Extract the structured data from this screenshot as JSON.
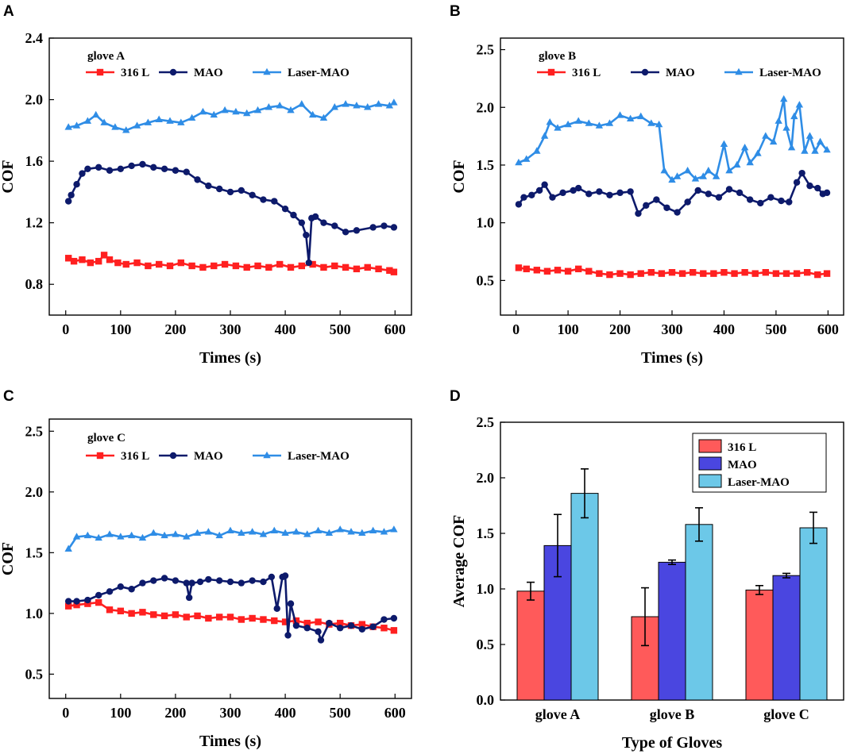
{
  "colors": {
    "s316L": "#ff2020",
    "MAO": "#0d1a6b",
    "LaserMAO": "#2f8de6",
    "bar316L": "#ff5a5a",
    "barMAO": "#4a46e0",
    "barLaserMAO": "#6cc8e8"
  },
  "chart_data": [
    {
      "panel": "A",
      "type": "line",
      "title": "glove A",
      "xlabel": "Times (s)",
      "ylabel": "COF",
      "xlim": [
        -30,
        630
      ],
      "ylim": [
        0.6,
        2.4
      ],
      "xticks": [
        0,
        100,
        200,
        300,
        400,
        500,
        600
      ],
      "yticks": [
        0.8,
        1.2,
        1.6,
        2.0,
        2.4
      ],
      "ytick_labels": [
        "0.8",
        "1.2",
        "1.6",
        "2.0",
        "2.4"
      ],
      "series": [
        {
          "name": "316 L",
          "marker": "square",
          "x": [
            5,
            15,
            30,
            45,
            60,
            70,
            80,
            95,
            110,
            130,
            150,
            170,
            190,
            210,
            230,
            250,
            270,
            290,
            310,
            330,
            350,
            370,
            390,
            410,
            430,
            450,
            470,
            490,
            510,
            530,
            550,
            570,
            590,
            598
          ],
          "y": [
            0.97,
            0.95,
            0.96,
            0.94,
            0.95,
            0.99,
            0.96,
            0.94,
            0.93,
            0.94,
            0.92,
            0.93,
            0.92,
            0.94,
            0.92,
            0.91,
            0.92,
            0.93,
            0.92,
            0.91,
            0.92,
            0.91,
            0.93,
            0.91,
            0.92,
            0.93,
            0.91,
            0.92,
            0.91,
            0.9,
            0.91,
            0.9,
            0.89,
            0.88
          ]
        },
        {
          "name": "MAO",
          "marker": "circle",
          "x": [
            5,
            10,
            20,
            30,
            40,
            60,
            80,
            100,
            120,
            140,
            160,
            180,
            200,
            220,
            240,
            260,
            280,
            300,
            320,
            340,
            360,
            380,
            400,
            415,
            430,
            438,
            443,
            448,
            455,
            470,
            490,
            510,
            530,
            560,
            580,
            598
          ],
          "y": [
            1.34,
            1.38,
            1.45,
            1.52,
            1.55,
            1.56,
            1.54,
            1.55,
            1.57,
            1.58,
            1.56,
            1.55,
            1.54,
            1.53,
            1.48,
            1.44,
            1.42,
            1.4,
            1.41,
            1.38,
            1.35,
            1.34,
            1.29,
            1.25,
            1.2,
            1.12,
            0.94,
            1.23,
            1.24,
            1.2,
            1.18,
            1.14,
            1.15,
            1.17,
            1.18,
            1.17
          ]
        },
        {
          "name": "Laser-MAO",
          "marker": "triangle",
          "x": [
            5,
            20,
            40,
            55,
            70,
            90,
            110,
            130,
            150,
            170,
            190,
            210,
            230,
            250,
            270,
            290,
            310,
            330,
            350,
            370,
            390,
            410,
            430,
            450,
            470,
            490,
            510,
            530,
            550,
            570,
            590,
            598
          ],
          "y": [
            1.82,
            1.83,
            1.86,
            1.9,
            1.85,
            1.82,
            1.8,
            1.83,
            1.85,
            1.87,
            1.86,
            1.85,
            1.88,
            1.92,
            1.9,
            1.93,
            1.92,
            1.91,
            1.93,
            1.95,
            1.96,
            1.93,
            1.97,
            1.9,
            1.88,
            1.95,
            1.97,
            1.96,
            1.95,
            1.97,
            1.96,
            1.98
          ]
        }
      ]
    },
    {
      "panel": "B",
      "type": "line",
      "title": "glove B",
      "xlabel": "Times (s)",
      "ylabel": "COF",
      "xlim": [
        -30,
        630
      ],
      "ylim": [
        0.2,
        2.6
      ],
      "xticks": [
        0,
        100,
        200,
        300,
        400,
        500,
        600
      ],
      "yticks": [
        0.5,
        1.0,
        1.5,
        2.0,
        2.5
      ],
      "ytick_labels": [
        "0.5",
        "1.0",
        "1.5",
        "2.0",
        "2.5"
      ],
      "series": [
        {
          "name": "316 L",
          "marker": "square",
          "x": [
            5,
            20,
            40,
            60,
            80,
            100,
            120,
            140,
            160,
            180,
            200,
            220,
            240,
            260,
            280,
            300,
            320,
            340,
            360,
            380,
            400,
            420,
            440,
            460,
            480,
            500,
            520,
            540,
            560,
            580,
            598
          ],
          "y": [
            0.61,
            0.6,
            0.59,
            0.58,
            0.59,
            0.58,
            0.6,
            0.58,
            0.56,
            0.55,
            0.56,
            0.55,
            0.56,
            0.57,
            0.56,
            0.57,
            0.56,
            0.57,
            0.56,
            0.56,
            0.57,
            0.56,
            0.57,
            0.56,
            0.57,
            0.56,
            0.56,
            0.56,
            0.57,
            0.55,
            0.56
          ]
        },
        {
          "name": "MAO",
          "marker": "circle",
          "x": [
            5,
            15,
            30,
            45,
            55,
            70,
            90,
            110,
            120,
            140,
            160,
            180,
            200,
            220,
            235,
            250,
            270,
            290,
            310,
            330,
            350,
            370,
            390,
            410,
            430,
            450,
            470,
            490,
            510,
            525,
            540,
            550,
            565,
            580,
            590,
            598
          ],
          "y": [
            1.16,
            1.22,
            1.24,
            1.28,
            1.33,
            1.22,
            1.26,
            1.28,
            1.3,
            1.25,
            1.27,
            1.24,
            1.26,
            1.27,
            1.08,
            1.15,
            1.2,
            1.13,
            1.09,
            1.18,
            1.28,
            1.25,
            1.22,
            1.29,
            1.26,
            1.2,
            1.17,
            1.22,
            1.19,
            1.18,
            1.35,
            1.43,
            1.32,
            1.3,
            1.25,
            1.26
          ]
        },
        {
          "name": "Laser-MAO",
          "marker": "triangle",
          "x": [
            5,
            20,
            40,
            55,
            65,
            80,
            100,
            120,
            140,
            160,
            180,
            200,
            220,
            240,
            260,
            275,
            285,
            300,
            310,
            330,
            345,
            360,
            370,
            385,
            400,
            410,
            425,
            440,
            450,
            465,
            480,
            495,
            505,
            515,
            520,
            530,
            535,
            545,
            555,
            565,
            575,
            585,
            598
          ],
          "y": [
            1.52,
            1.55,
            1.62,
            1.75,
            1.87,
            1.82,
            1.85,
            1.88,
            1.86,
            1.84,
            1.86,
            1.93,
            1.9,
            1.92,
            1.86,
            1.85,
            1.45,
            1.37,
            1.4,
            1.45,
            1.38,
            1.4,
            1.45,
            1.4,
            1.68,
            1.45,
            1.5,
            1.65,
            1.52,
            1.6,
            1.75,
            1.7,
            1.88,
            2.07,
            1.82,
            1.65,
            1.92,
            2.02,
            1.62,
            1.75,
            1.62,
            1.7,
            1.63
          ]
        }
      ]
    },
    {
      "panel": "C",
      "type": "line",
      "title": "glove C",
      "xlabel": "Times (s)",
      "ylabel": "COF",
      "xlim": [
        -30,
        630
      ],
      "ylim": [
        0.3,
        2.6
      ],
      "xticks": [
        0,
        100,
        200,
        300,
        400,
        500,
        600
      ],
      "yticks": [
        0.5,
        1.0,
        1.5,
        2.0,
        2.5
      ],
      "ytick_labels": [
        "0.5",
        "1.0",
        "1.5",
        "2.0",
        "2.5"
      ],
      "series": [
        {
          "name": "316 L",
          "marker": "square",
          "x": [
            5,
            20,
            40,
            60,
            80,
            100,
            120,
            140,
            160,
            180,
            200,
            220,
            240,
            260,
            280,
            300,
            320,
            340,
            360,
            380,
            400,
            420,
            440,
            460,
            480,
            500,
            520,
            540,
            560,
            580,
            598
          ],
          "y": [
            1.06,
            1.07,
            1.08,
            1.09,
            1.03,
            1.02,
            1.0,
            1.01,
            0.99,
            0.98,
            0.99,
            0.97,
            0.98,
            0.96,
            0.97,
            0.97,
            0.95,
            0.96,
            0.95,
            0.94,
            0.93,
            0.94,
            0.92,
            0.93,
            0.91,
            0.92,
            0.9,
            0.91,
            0.89,
            0.88,
            0.86
          ]
        },
        {
          "name": "MAO",
          "marker": "circle",
          "x": [
            5,
            20,
            40,
            60,
            80,
            100,
            120,
            140,
            160,
            180,
            200,
            220,
            225,
            230,
            245,
            260,
            280,
            300,
            320,
            340,
            360,
            375,
            385,
            395,
            400,
            405,
            410,
            420,
            440,
            460,
            465,
            480,
            500,
            520,
            540,
            560,
            580,
            598
          ],
          "y": [
            1.1,
            1.1,
            1.11,
            1.15,
            1.18,
            1.22,
            1.2,
            1.25,
            1.27,
            1.29,
            1.27,
            1.25,
            1.13,
            1.25,
            1.26,
            1.28,
            1.27,
            1.26,
            1.25,
            1.27,
            1.26,
            1.3,
            1.04,
            1.3,
            1.31,
            0.82,
            1.08,
            0.9,
            0.88,
            0.85,
            0.78,
            0.92,
            0.88,
            0.9,
            0.87,
            0.89,
            0.95,
            0.96
          ]
        },
        {
          "name": "Laser-MAO",
          "marker": "triangle",
          "x": [
            5,
            20,
            40,
            60,
            80,
            100,
            120,
            140,
            160,
            180,
            200,
            220,
            240,
            260,
            280,
            300,
            320,
            340,
            360,
            380,
            400,
            420,
            440,
            460,
            480,
            500,
            520,
            540,
            560,
            580,
            598
          ],
          "y": [
            1.53,
            1.63,
            1.64,
            1.62,
            1.65,
            1.63,
            1.64,
            1.62,
            1.66,
            1.64,
            1.65,
            1.63,
            1.66,
            1.67,
            1.64,
            1.68,
            1.66,
            1.67,
            1.65,
            1.68,
            1.66,
            1.67,
            1.65,
            1.68,
            1.66,
            1.69,
            1.67,
            1.66,
            1.68,
            1.67,
            1.69
          ]
        }
      ]
    },
    {
      "panel": "D",
      "type": "bar",
      "xlabel": "Type of Gloves",
      "ylabel": "Average COF",
      "ylim": [
        0.0,
        2.5
      ],
      "yticks": [
        0.0,
        0.5,
        1.0,
        1.5,
        2.0,
        2.5
      ],
      "ytick_labels": [
        "0.0",
        "0.5",
        "1.0",
        "1.5",
        "2.0",
        "2.5"
      ],
      "categories": [
        "glove A",
        "glove B",
        "glove C"
      ],
      "series": [
        {
          "name": "316 L",
          "values": [
            0.98,
            0.75,
            0.99
          ],
          "errors": [
            0.08,
            0.26,
            0.04
          ]
        },
        {
          "name": "MAO",
          "values": [
            1.39,
            1.24,
            1.12
          ],
          "errors": [
            0.28,
            0.02,
            0.02
          ]
        },
        {
          "name": "Laser-MAO",
          "values": [
            1.86,
            1.58,
            1.55
          ],
          "errors": [
            0.22,
            0.15,
            0.14
          ]
        }
      ]
    }
  ]
}
